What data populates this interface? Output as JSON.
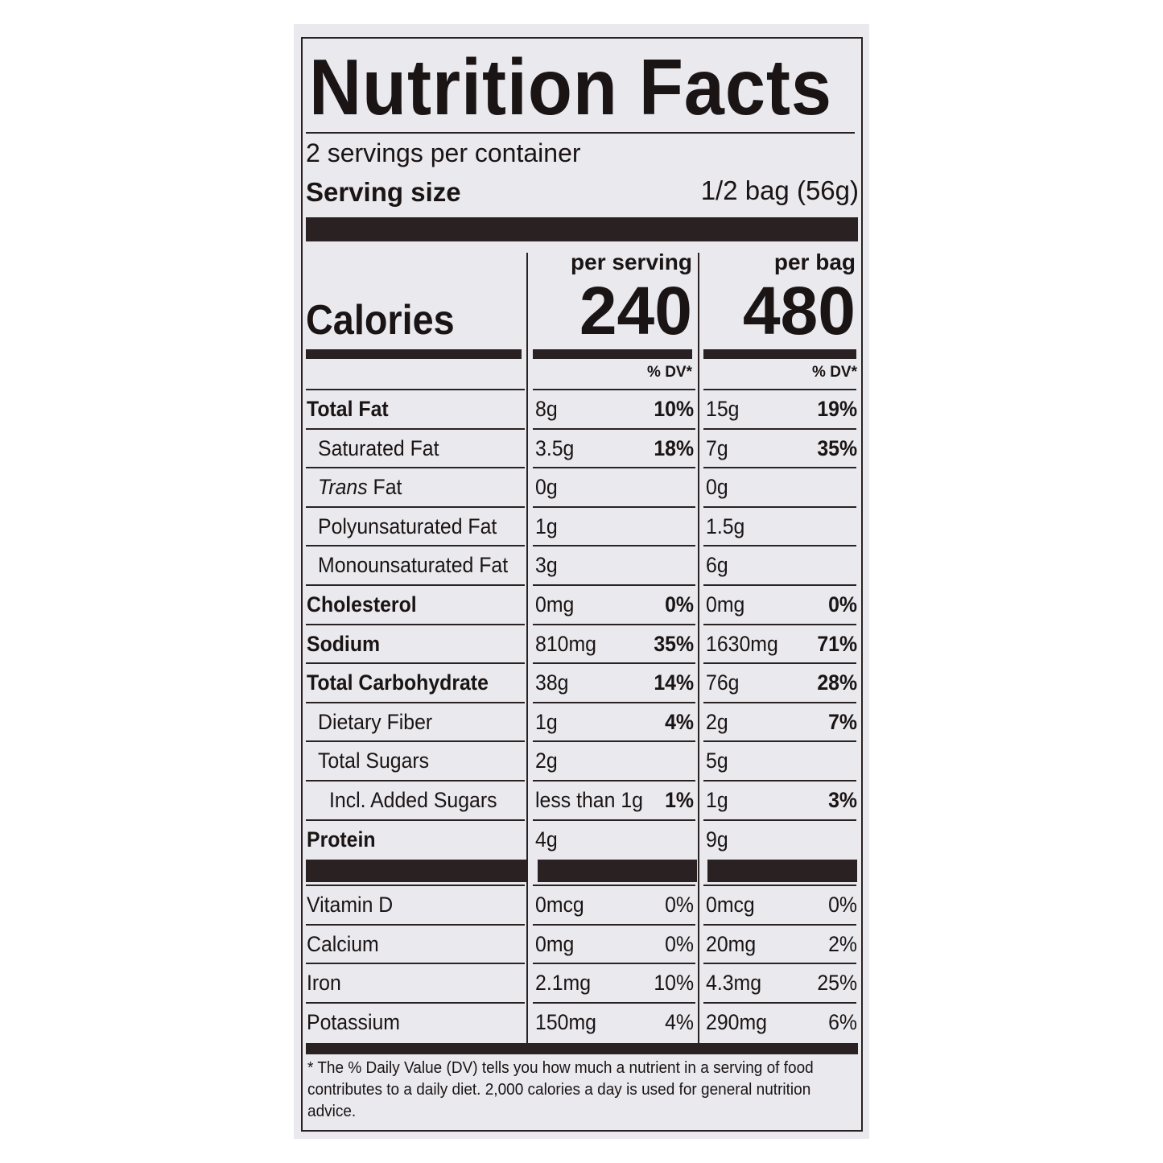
{
  "title": "Nutrition Facts",
  "servings_per_container": "2 servings per container",
  "serving_size": {
    "label": "Serving size",
    "value": "1/2 bag (56g)"
  },
  "columns": {
    "per_serving": "per serving",
    "per_bag": "per bag",
    "dv_header": "% DV*"
  },
  "calories": {
    "label": "Calories",
    "per_serving": "240",
    "per_bag": "480"
  },
  "nutrients": [
    {
      "label": "Total Fat",
      "bold": true,
      "indent": 0,
      "serving_amount": "8g",
      "serving_dv": "10%",
      "bag_amount": "15g",
      "bag_dv": "19%"
    },
    {
      "label": "Saturated Fat",
      "bold": false,
      "indent": 1,
      "serving_amount": "3.5g",
      "serving_dv": "18%",
      "bag_amount": "7g",
      "bag_dv": "35%"
    },
    {
      "label_italic": "Trans",
      "label": " Fat",
      "bold": false,
      "indent": 1,
      "serving_amount": "0g",
      "serving_dv": "",
      "bag_amount": "0g",
      "bag_dv": ""
    },
    {
      "label": "Polyunsaturated Fat",
      "bold": false,
      "indent": 1,
      "serving_amount": "1g",
      "serving_dv": "",
      "bag_amount": "1.5g",
      "bag_dv": ""
    },
    {
      "label": "Monounsaturated Fat",
      "bold": false,
      "indent": 1,
      "serving_amount": "3g",
      "serving_dv": "",
      "bag_amount": "6g",
      "bag_dv": ""
    },
    {
      "label": "Cholesterol",
      "bold": true,
      "indent": 0,
      "serving_amount": "0mg",
      "serving_dv": "0%",
      "bag_amount": "0mg",
      "bag_dv": "0%"
    },
    {
      "label": "Sodium",
      "bold": true,
      "indent": 0,
      "serving_amount": "810mg",
      "serving_dv": "35%",
      "bag_amount": "1630mg",
      "bag_dv": "71%"
    },
    {
      "label": "Total Carbohydrate",
      "bold": true,
      "indent": 0,
      "serving_amount": "38g",
      "serving_dv": "14%",
      "bag_amount": "76g",
      "bag_dv": "28%"
    },
    {
      "label": "Dietary Fiber",
      "bold": false,
      "indent": 1,
      "serving_amount": "1g",
      "serving_dv": "4%",
      "bag_amount": "2g",
      "bag_dv": "7%"
    },
    {
      "label": "Total Sugars",
      "bold": false,
      "indent": 1,
      "serving_amount": "2g",
      "serving_dv": "",
      "bag_amount": "5g",
      "bag_dv": ""
    },
    {
      "label": "Incl. Added Sugars",
      "bold": false,
      "indent": 2,
      "serving_amount": "less than 1g",
      "serving_dv": "1%",
      "bag_amount": "1g",
      "bag_dv": "3%"
    },
    {
      "label": "Protein",
      "bold": true,
      "indent": 0,
      "serving_amount": "4g",
      "serving_dv": "",
      "bag_amount": "9g",
      "bag_dv": ""
    }
  ],
  "vitamins": [
    {
      "label": "Vitamin D",
      "serving_amount": "0mcg",
      "serving_dv": "0%",
      "bag_amount": "0mcg",
      "bag_dv": "0%"
    },
    {
      "label": "Calcium",
      "serving_amount": "0mg",
      "serving_dv": "0%",
      "bag_amount": "20mg",
      "bag_dv": "2%"
    },
    {
      "label": "Iron",
      "serving_amount": "2.1mg",
      "serving_dv": "10%",
      "bag_amount": "4.3mg",
      "bag_dv": "25%"
    },
    {
      "label": "Potassium",
      "serving_amount": "150mg",
      "serving_dv": "4%",
      "bag_amount": "290mg",
      "bag_dv": "6%"
    }
  ],
  "footnote": "* The % Daily Value (DV) tells you how much a nutrient in a serving of food contributes to a daily diet. 2,000 calories a day is used for general nutrition advice."
}
